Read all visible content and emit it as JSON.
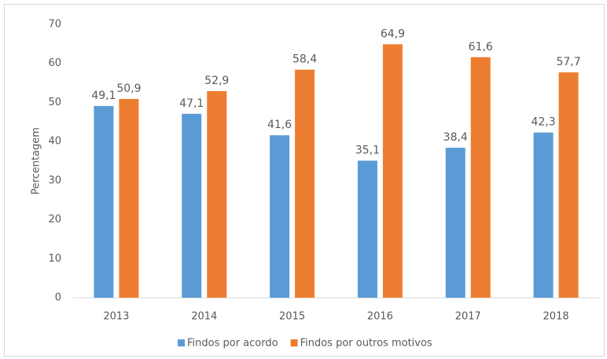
{
  "chart_data": {
    "type": "bar",
    "ylabel": "Percentagem",
    "categories": [
      "2013",
      "2014",
      "2015",
      "2016",
      "2017",
      "2018"
    ],
    "series": [
      {
        "name": "Findos por acordo",
        "color": "#5b9bd5",
        "values": [
          49.1,
          47.1,
          41.6,
          35.1,
          38.4,
          42.3
        ],
        "value_labels": [
          "49,1",
          "47,1",
          "41,6",
          "35,1",
          "38,4",
          "42,3"
        ]
      },
      {
        "name": "Findos por outros motivos",
        "color": "#ed7d31",
        "values": [
          50.9,
          52.9,
          58.4,
          64.9,
          61.6,
          57.7
        ],
        "value_labels": [
          "50,9",
          "52,9",
          "58,4",
          "64,9",
          "61,6",
          "57,7"
        ]
      }
    ],
    "ylim": [
      0,
      70
    ],
    "yticks": [
      0,
      10,
      20,
      30,
      40,
      50,
      60,
      70
    ],
    "grid": false,
    "legend": "bottom"
  }
}
